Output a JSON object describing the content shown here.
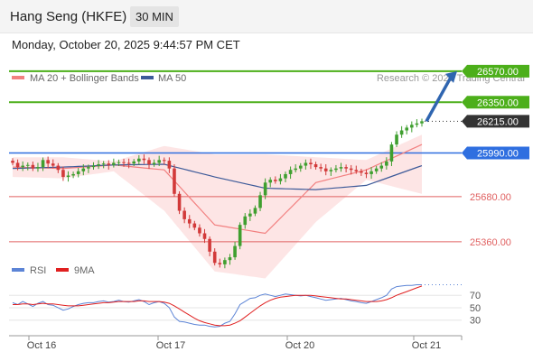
{
  "header": {
    "instrument": "Hang Seng (HKFE)",
    "timeframe": "30 MIN",
    "datetime": "Monday, October 20, 2025 9:44:57 PM CET"
  },
  "colors": {
    "support": "#e06060",
    "resistance": "#4caf1a",
    "pivot": "#2f6fe0",
    "current": "#333333",
    "up_candle": "#3f9f2f",
    "down_candle": "#d23a3a",
    "ma20": "#f28080",
    "ma50": "#3d5a99",
    "band_fill": "#fde0e0",
    "rsi": "#5c84d6",
    "rsi_ma": "#e02020",
    "arrow": "#2f65b0"
  },
  "chart_data": [
    {
      "type": "candlestick",
      "legend": [
        {
          "name": "MA 20 + Bollinger Bands",
          "color": "#f28080"
        },
        {
          "name": "MA 50",
          "color": "#3d5a99"
        }
      ],
      "watermark": "Research © 2025 Trading Central",
      "x_ticks": [
        "Oct 16",
        "Oct 17",
        "Oct 20",
        "Oct 21"
      ],
      "price_levels": [
        {
          "value": 26570.0,
          "label": "26570.00",
          "kind": "resistance"
        },
        {
          "value": 26350.0,
          "label": "26350.00",
          "kind": "resistance"
        },
        {
          "value": 26215.0,
          "label": "26215.00",
          "kind": "current"
        },
        {
          "value": 25990.0,
          "label": "25990.00",
          "kind": "pivot"
        },
        {
          "value": 25680.0,
          "label": "25680.00",
          "kind": "support"
        },
        {
          "value": 25360.0,
          "label": "25360.00",
          "kind": "support"
        }
      ],
      "close_path": [
        25920,
        25890,
        25900,
        25905,
        25880,
        25890,
        25940,
        25915,
        25900,
        25870,
        25820,
        25830,
        25840,
        25860,
        25880,
        25890,
        25900,
        25910,
        25915,
        25905,
        25920,
        25925,
        25920,
        25915,
        25930,
        25950,
        25940,
        25910,
        25920,
        25940,
        25935,
        25880,
        25700,
        25580,
        25520,
        25490,
        25460,
        25420,
        25380,
        25290,
        25210,
        25200,
        25230,
        25250,
        25330,
        25480,
        25540,
        25560,
        25600,
        25690,
        25780,
        25800,
        25790,
        25810,
        25840,
        25870,
        25880,
        25900,
        25920,
        25910,
        25890,
        25880,
        25860,
        25870,
        25880,
        25890,
        25880,
        25870,
        25860,
        25850,
        25840,
        25860,
        25880,
        25900,
        25930,
        26050,
        26120,
        26150,
        26170,
        26190,
        26200,
        26215
      ],
      "series": [
        {
          "name": "MA 20 + Bollinger Bands",
          "role": "ma20",
          "x": [
            0,
            10,
            20,
            30,
            40,
            50,
            60,
            70,
            81
          ],
          "values": [
            25890,
            25880,
            25905,
            25870,
            25480,
            25420,
            25780,
            25870,
            26050
          ]
        },
        {
          "name": "MA 50",
          "role": "ma50",
          "x": [
            0,
            10,
            20,
            30,
            40,
            50,
            60,
            70,
            81
          ],
          "values": [
            25880,
            25890,
            25905,
            25910,
            25820,
            25740,
            25730,
            25760,
            25900
          ]
        }
      ],
      "bands": {
        "x": [
          0,
          10,
          20,
          30,
          40,
          50,
          60,
          70,
          81
        ],
        "upper": [
          25960,
          25960,
          25930,
          26040,
          25980,
          25980,
          25960,
          25940,
          26120
        ],
        "lower": [
          25820,
          25810,
          25860,
          25580,
          25150,
          25100,
          25500,
          25800,
          25700
        ]
      },
      "ylim": [
        25180,
        26640
      ],
      "forecast_arrow": {
        "from": 26215,
        "to": 26570
      }
    },
    {
      "type": "line",
      "legend": [
        {
          "name": "RSI",
          "color": "#5c84d6"
        },
        {
          "name": "9MA",
          "color": "#e02020"
        }
      ],
      "y_ticks": [
        70,
        50,
        30
      ],
      "ylim": [
        15,
        95
      ],
      "series": [
        {
          "name": "RSI",
          "role": "rsi",
          "values": [
            58,
            55,
            60,
            56,
            52,
            57,
            60,
            55,
            54,
            50,
            46,
            48,
            52,
            55,
            57,
            58,
            58,
            60,
            61,
            59,
            60,
            62,
            60,
            59,
            61,
            63,
            60,
            55,
            58,
            60,
            57,
            50,
            35,
            28,
            27,
            25,
            23,
            22,
            22,
            20,
            19,
            20,
            25,
            28,
            40,
            55,
            60,
            65,
            66,
            70,
            72,
            70,
            68,
            70,
            72,
            71,
            70,
            69,
            70,
            68,
            66,
            64,
            62,
            63,
            64,
            65,
            63,
            61,
            60,
            58,
            57,
            60,
            63,
            66,
            70,
            80,
            84,
            85,
            86,
            86,
            87,
            87
          ]
        },
        {
          "name": "9MA",
          "role": "rsi_ma",
          "values": [
            55,
            55,
            56,
            56,
            55,
            56,
            57,
            56,
            56,
            55,
            54,
            53,
            53,
            53,
            54,
            55,
            56,
            57,
            58,
            58,
            59,
            60,
            60,
            60,
            60,
            61,
            61,
            60,
            60,
            60,
            59,
            57,
            53,
            48,
            43,
            38,
            33,
            29,
            26,
            24,
            22,
            21,
            21,
            22,
            25,
            29,
            35,
            41,
            47,
            53,
            58,
            62,
            65,
            67,
            68,
            69,
            70,
            70,
            70,
            70,
            69,
            68,
            67,
            66,
            65,
            64,
            64,
            63,
            62,
            61,
            60,
            60,
            60,
            61,
            63,
            66,
            70,
            73,
            76,
            79,
            82,
            85
          ]
        }
      ]
    }
  ]
}
